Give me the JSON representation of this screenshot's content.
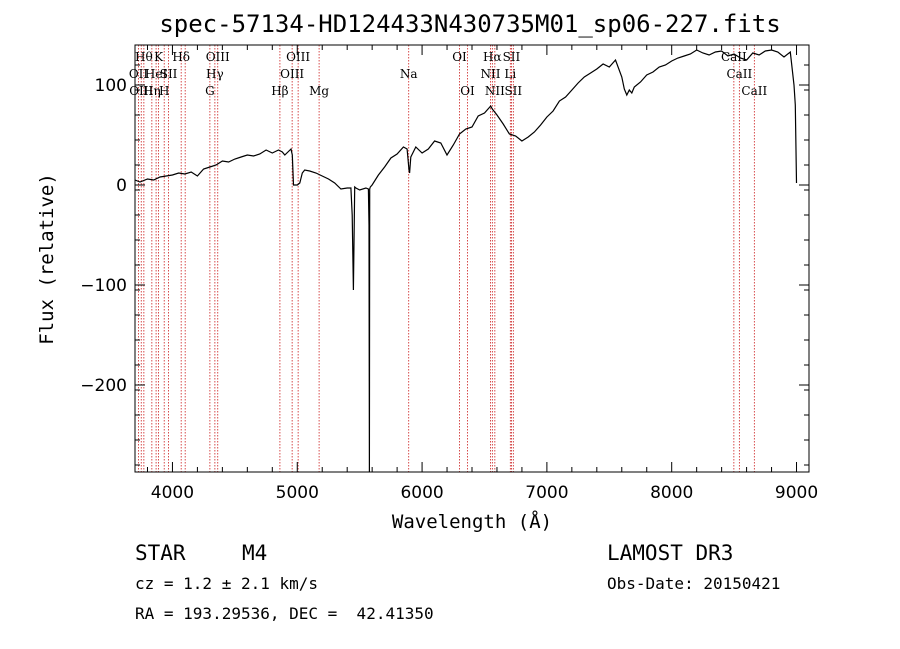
{
  "chart_data": {
    "type": "line",
    "title": "spec-57134-HD124433N430735M01_sp06-227.fits",
    "xlabel": "Wavelength (Å)",
    "ylabel": "Flux (relative)",
    "xlim": [
      3700,
      9100
    ],
    "ylim": [
      -287,
      140
    ],
    "xticks": [
      4000,
      5000,
      6000,
      7000,
      8000,
      9000
    ],
    "yticks": [
      -200,
      -100,
      0,
      100
    ],
    "yminor": 4,
    "xminor": 5,
    "line_color": "#cc2020",
    "spectrum_color": "#000000",
    "series": [
      {
        "name": "flux",
        "x": [
          3700,
          3740,
          3800,
          3850,
          3900,
          3950,
          4000,
          4050,
          4100,
          4150,
          4200,
          4250,
          4300,
          4350,
          4400,
          4450,
          4500,
          4550,
          4600,
          4650,
          4700,
          4750,
          4800,
          4850,
          4880,
          4900,
          4950,
          4960,
          4970,
          4980,
          5000,
          5020,
          5040,
          5060,
          5100,
          5150,
          5200,
          5250,
          5300,
          5350,
          5400,
          5430,
          5440,
          5450,
          5455,
          5460,
          5470,
          5500,
          5550,
          5570,
          5575,
          5578,
          5580,
          5585,
          5600,
          5650,
          5700,
          5750,
          5800,
          5850,
          5880,
          5895,
          5900,
          5910,
          5950,
          6000,
          6050,
          6100,
          6150,
          6200,
          6250,
          6300,
          6350,
          6400,
          6450,
          6500,
          6550,
          6563,
          6600,
          6650,
          6700,
          6750,
          6800,
          6850,
          6900,
          6950,
          7000,
          7050,
          7100,
          7150,
          7200,
          7250,
          7300,
          7350,
          7400,
          7450,
          7500,
          7550,
          7600,
          7620,
          7640,
          7660,
          7680,
          7700,
          7750,
          7800,
          7850,
          7900,
          7950,
          8000,
          8050,
          8100,
          8150,
          8200,
          8250,
          8300,
          8350,
          8400,
          8450,
          8500,
          8550,
          8600,
          8650,
          8700,
          8750,
          8800,
          8850,
          8900,
          8950,
          8980,
          8990,
          9000
        ],
        "y": [
          5,
          3,
          6,
          5,
          8,
          9,
          10,
          12,
          11,
          13,
          9,
          16,
          18,
          20,
          24,
          23,
          26,
          28,
          30,
          29,
          31,
          35,
          32,
          35,
          33,
          30,
          36,
          30,
          0,
          0,
          0,
          2,
          12,
          15,
          14,
          12,
          9,
          6,
          2,
          -4,
          -3,
          -3,
          -30,
          -105,
          -50,
          -2,
          -3,
          -5,
          -3,
          -4,
          -40,
          -287,
          -4,
          -2,
          0,
          10,
          18,
          27,
          31,
          38,
          36,
          15,
          12,
          28,
          38,
          32,
          36,
          44,
          42,
          30,
          40,
          51,
          56,
          58,
          69,
          72,
          79,
          76,
          70,
          61,
          51,
          49,
          44,
          48,
          53,
          60,
          68,
          74,
          84,
          88,
          95,
          102,
          108,
          112,
          116,
          121,
          118,
          125,
          108,
          96,
          90,
          95,
          92,
          98,
          103,
          110,
          113,
          118,
          120,
          124,
          127,
          129,
          131,
          135,
          132,
          130,
          133,
          134,
          129,
          131,
          127,
          125,
          132,
          130,
          134,
          135,
          133,
          128,
          133,
          100,
          80,
          2
        ]
      }
    ],
    "lines": [
      {
        "x": 3728,
        "label": "OII",
        "row": 2
      },
      {
        "x": 3750,
        "label": "OIII",
        "row": 3
      },
      {
        "x": 3771,
        "label": "Hθ",
        "row": 1
      },
      {
        "x": 3835,
        "label": "Hη",
        "row": 3
      },
      {
        "x": 3869,
        "label": "HeI",
        "row": 2
      },
      {
        "x": 3889,
        "label": "K",
        "row": 1
      },
      {
        "x": 3934,
        "label": "H",
        "row": 3
      },
      {
        "x": 3969,
        "label": "SII",
        "row": 2
      },
      {
        "x": 4070,
        "label": "Hδ",
        "row": 1
      },
      {
        "x": 4102,
        "label": "",
        "row": 0
      },
      {
        "x": 4300,
        "label": "G",
        "row": 3
      },
      {
        "x": 4340,
        "label": "Hγ",
        "row": 2
      },
      {
        "x": 4363,
        "label": "OIII",
        "row": 1
      },
      {
        "x": 4861,
        "label": "Hβ",
        "row": 3
      },
      {
        "x": 4959,
        "label": "OIII",
        "row": 2
      },
      {
        "x": 5007,
        "label": "OIII",
        "row": 1
      },
      {
        "x": 5175,
        "label": "Mg",
        "row": 3
      },
      {
        "x": 5893,
        "label": "Na",
        "row": 2
      },
      {
        "x": 6300,
        "label": "OI",
        "row": 1
      },
      {
        "x": 6364,
        "label": "OI",
        "row": 3
      },
      {
        "x": 6548,
        "label": "NII",
        "row": 2
      },
      {
        "x": 6563,
        "label": "Hα",
        "row": 1
      },
      {
        "x": 6583,
        "label": "NII",
        "row": 3
      },
      {
        "x": 6707,
        "label": "Li",
        "row": 2
      },
      {
        "x": 6716,
        "label": "SII",
        "row": 1
      },
      {
        "x": 6731,
        "label": "SII",
        "row": 3
      },
      {
        "x": 8498,
        "label": "CaII",
        "row": 1
      },
      {
        "x": 8542,
        "label": "CaII",
        "row": 2
      },
      {
        "x": 8662,
        "label": "CaII",
        "row": 3
      }
    ]
  },
  "info": {
    "object_class": "STAR",
    "subclass": "M4",
    "survey": "LAMOST DR3",
    "cz": "cz = 1.2 ± 2.1 km/s",
    "obs_date": "Obs-Date: 20150421",
    "coords": "RA = 193.29536, DEC =  42.41350"
  }
}
